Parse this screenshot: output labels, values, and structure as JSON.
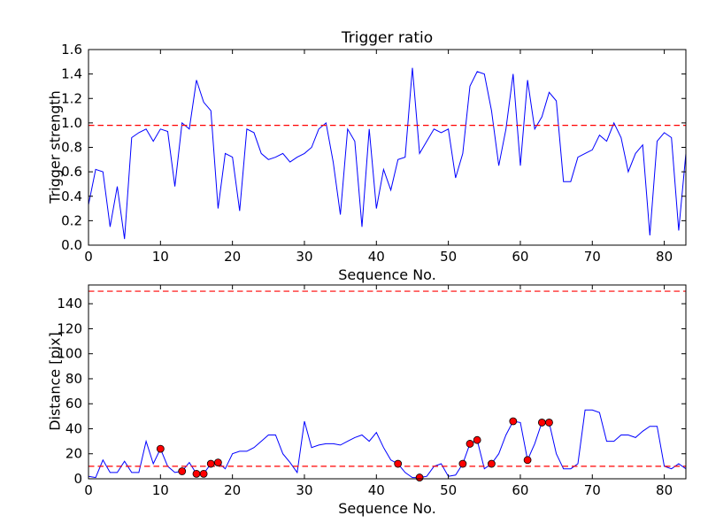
{
  "figure": {
    "background": "#ffffff",
    "line_color": "#0000ff",
    "threshold_color": "#ff0000",
    "marker_face_color": "#ff0000",
    "marker_edge_color": "#000000",
    "axis_color": "#000000",
    "text_color": "#000000"
  },
  "chart_data": [
    {
      "type": "line",
      "title": "Trigger ratio",
      "xlabel": "Sequence No.",
      "ylabel": "Trigger strength",
      "xlim": [
        0,
        83
      ],
      "ylim": [
        0,
        1.6
      ],
      "xticks": [
        0,
        10,
        20,
        30,
        40,
        50,
        60,
        70,
        80
      ],
      "yticks": [
        0.0,
        0.2,
        0.4,
        0.6,
        0.8,
        1.0,
        1.2,
        1.4,
        1.6
      ],
      "ytick_decimals": 1,
      "grid": false,
      "legend": "none",
      "threshold_lines": [
        0.98
      ],
      "values": [
        0.33,
        0.62,
        0.6,
        0.15,
        0.48,
        0.05,
        0.88,
        0.92,
        0.95,
        0.85,
        0.95,
        0.93,
        0.48,
        1.0,
        0.95,
        1.35,
        1.17,
        1.1,
        0.3,
        0.75,
        0.72,
        0.28,
        0.95,
        0.92,
        0.75,
        0.7,
        0.72,
        0.75,
        0.68,
        0.72,
        0.75,
        0.8,
        0.95,
        1.0,
        0.68,
        0.25,
        0.95,
        0.85,
        0.15,
        0.95,
        0.3,
        0.62,
        0.45,
        0.7,
        0.72,
        1.45,
        0.75,
        0.85,
        0.95,
        0.92,
        0.95,
        0.55,
        0.75,
        1.3,
        1.42,
        1.4,
        1.1,
        0.65,
        0.95,
        1.4,
        0.65,
        1.35,
        0.95,
        1.05,
        1.25,
        1.18,
        0.52,
        0.52,
        0.72,
        0.75,
        0.78,
        0.9,
        0.85,
        1.0,
        0.88,
        0.6,
        0.75,
        0.82,
        0.08,
        0.85,
        0.92,
        0.88,
        0.12,
        0.75
      ]
    },
    {
      "type": "line",
      "title": "",
      "xlabel": "Sequence No.",
      "ylabel": "Distance [pix]",
      "xlim": [
        0,
        83
      ],
      "ylim": [
        0,
        155
      ],
      "xticks": [
        0,
        10,
        20,
        30,
        40,
        50,
        60,
        70,
        80
      ],
      "yticks": [
        0,
        20,
        40,
        60,
        80,
        100,
        120,
        140
      ],
      "ytick_decimals": 0,
      "grid": false,
      "legend": "none",
      "threshold_lines": [
        150,
        10
      ],
      "values": [
        2,
        1,
        15,
        5,
        5,
        14,
        5,
        5,
        30,
        12,
        24,
        10,
        5,
        6,
        13,
        4,
        4,
        12,
        13,
        8,
        20,
        22,
        22,
        25,
        30,
        35,
        35,
        20,
        13,
        5,
        46,
        25,
        27,
        28,
        28,
        27,
        30,
        33,
        35,
        30,
        37,
        25,
        15,
        12,
        5,
        1,
        1,
        2,
        10,
        12,
        2,
        3,
        12,
        28,
        31,
        8,
        12,
        20,
        35,
        46,
        45,
        15,
        28,
        45,
        45,
        20,
        8,
        8,
        12,
        55,
        55,
        53,
        30,
        30,
        35,
        35,
        33,
        38,
        42,
        42,
        10,
        8,
        12,
        8
      ],
      "marker_indices": [
        10,
        13,
        15,
        16,
        17,
        18,
        43,
        46,
        52,
        53,
        54,
        56,
        59,
        61,
        63,
        64
      ]
    }
  ]
}
